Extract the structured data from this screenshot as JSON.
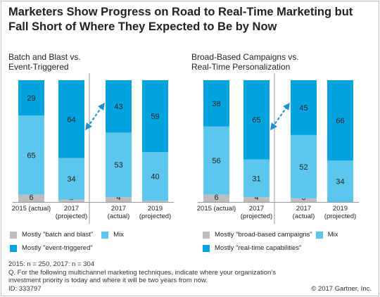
{
  "title_line1": "Marketers Show Progress on Road to Real-Time Marketing but",
  "title_line2": "Fall Short of Where They Expected to Be by Now",
  "colors": {
    "gray": "#bdbdbd",
    "mix": "#5dc6ec",
    "dark": "#00a3e0",
    "arrow": "#1f8fd0"
  },
  "chart_data": [
    {
      "type": "bar",
      "stacked": true,
      "title_line1": "Batch and Blast vs.",
      "title_line2": "Event-Triggered",
      "categories": [
        {
          "line1": "2015 (actual)",
          "line2": ""
        },
        {
          "line1": "2017",
          "line2": "(projected)"
        },
        {
          "line1": "2017",
          "line2": "(actual)"
        },
        {
          "line1": "2019",
          "line2": "(projected)"
        }
      ],
      "series": [
        {
          "name": "Mostly \"batch and blast\"",
          "values": [
            6,
            2,
            4,
            1
          ]
        },
        {
          "name": "Mix",
          "values": [
            65,
            34,
            53,
            40
          ]
        },
        {
          "name": "Mostly \"event-triggered\"",
          "values": [
            29,
            64,
            43,
            59
          ]
        }
      ],
      "ylim": [
        0,
        100
      ]
    },
    {
      "type": "bar",
      "stacked": true,
      "title_line1": "Broad-Based Campaigns vs.",
      "title_line2": "Real-Time Personalization",
      "categories": [
        {
          "line1": "2015 (actual)",
          "line2": ""
        },
        {
          "line1": "2017",
          "line2": "(projected)"
        },
        {
          "line1": "2017",
          "line2": "(actual)"
        },
        {
          "line1": "2019",
          "line2": "(projected)"
        }
      ],
      "series": [
        {
          "name": "Mostly \"broad-based campaigns\"",
          "values": [
            6,
            4,
            3,
            0
          ]
        },
        {
          "name": "Mix",
          "values": [
            56,
            31,
            52,
            34
          ]
        },
        {
          "name": "Mostly \"real-time capabilities\"",
          "values": [
            38,
            65,
            45,
            66
          ]
        }
      ],
      "ylim": [
        0,
        100
      ]
    }
  ],
  "footer_line1": "2015: n = 250, 2017: n = 304",
  "footer_line2": "Q. For the following multichannel marketing techniques, indicate where your organization’s",
  "footer_line3": "investment priority is today and where it will be two years from now.",
  "footer_line4": "ID: 333797",
  "copyright": "© 2017 Gartner, Inc."
}
